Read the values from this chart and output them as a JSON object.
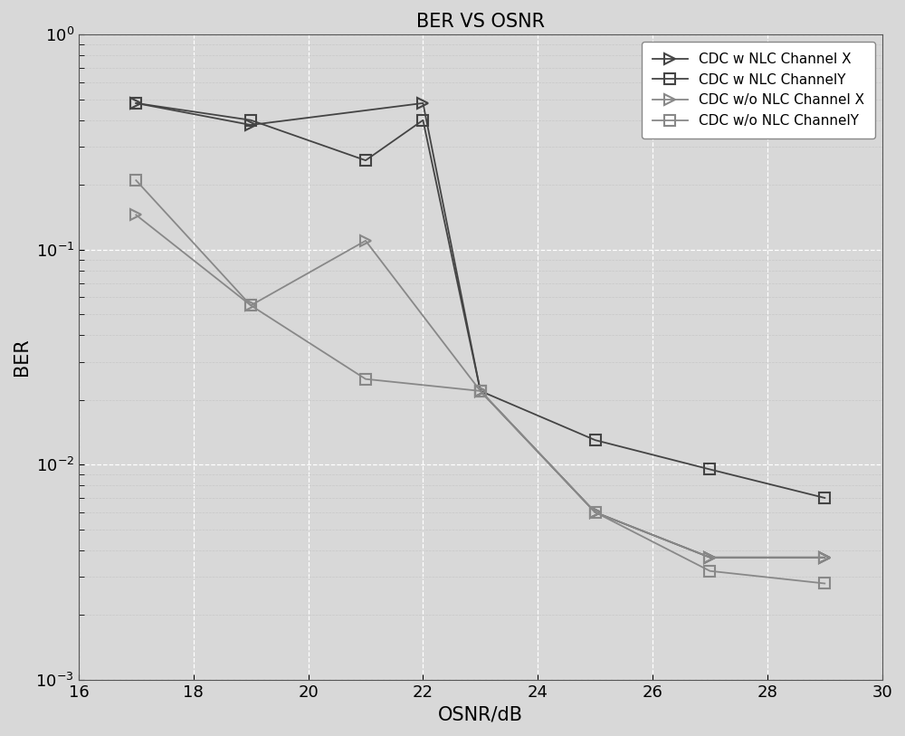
{
  "title": "BER VS OSNR",
  "xlabel": "OSNR/dB",
  "ylabel": "BER",
  "xlim": [
    16,
    30
  ],
  "ylim": [
    0.001,
    1.0
  ],
  "series": [
    {
      "label": "CDC w NLC Channel X",
      "x": [
        17,
        19,
        22,
        23,
        25,
        27,
        29
      ],
      "y": [
        0.48,
        0.38,
        0.48,
        0.022,
        0.006,
        0.0037,
        0.0037
      ],
      "color": "#444444",
      "marker": ">",
      "markersize": 8,
      "linewidth": 1.3
    },
    {
      "label": "CDC w NLC ChannelY",
      "x": [
        17,
        19,
        21,
        22,
        23,
        25,
        27,
        29
      ],
      "y": [
        0.48,
        0.4,
        0.26,
        0.4,
        0.022,
        0.013,
        0.0095,
        0.007
      ],
      "color": "#444444",
      "marker": "s",
      "markersize": 8,
      "linewidth": 1.3
    },
    {
      "label": "CDC w/o NLC Channel X",
      "x": [
        17,
        19,
        21,
        23,
        25,
        27,
        29
      ],
      "y": [
        0.145,
        0.055,
        0.11,
        0.022,
        0.006,
        0.0037,
        0.0037
      ],
      "color": "#888888",
      "marker": ">",
      "markersize": 8,
      "linewidth": 1.3
    },
    {
      "label": "CDC w/o NLC ChannelY",
      "x": [
        17,
        19,
        21,
        23,
        25,
        27,
        29
      ],
      "y": [
        0.21,
        0.055,
        0.025,
        0.022,
        0.006,
        0.0032,
        0.0028
      ],
      "color": "#888888",
      "marker": "s",
      "markersize": 8,
      "linewidth": 1.3
    }
  ],
  "bg_color": "#d8d8d8",
  "plot_bg_color": "#d8d8d8",
  "grid_major_color": "#ffffff",
  "grid_minor_color": "#c8c8c8",
  "xticks": [
    16,
    18,
    20,
    22,
    24,
    26,
    28,
    30
  ],
  "legend_loc": "upper right",
  "tick_fontsize": 13,
  "label_fontsize": 15,
  "title_fontsize": 15
}
